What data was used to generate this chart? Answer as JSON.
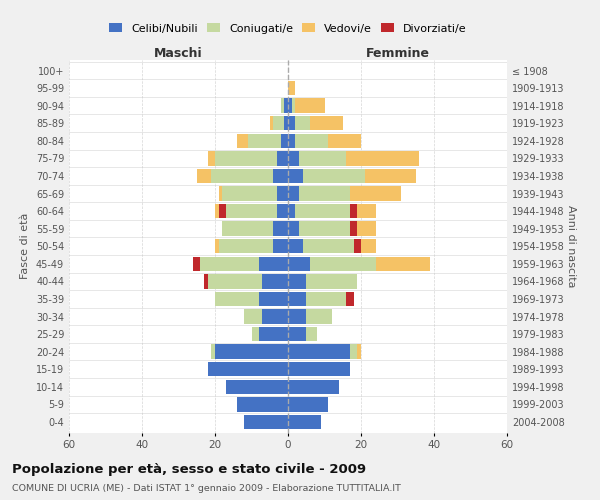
{
  "age_groups": [
    "0-4",
    "5-9",
    "10-14",
    "15-19",
    "20-24",
    "25-29",
    "30-34",
    "35-39",
    "40-44",
    "45-49",
    "50-54",
    "55-59",
    "60-64",
    "65-69",
    "70-74",
    "75-79",
    "80-84",
    "85-89",
    "90-94",
    "95-99",
    "100+"
  ],
  "birth_years": [
    "2004-2008",
    "1999-2003",
    "1994-1998",
    "1989-1993",
    "1984-1988",
    "1979-1983",
    "1974-1978",
    "1969-1973",
    "1964-1968",
    "1959-1963",
    "1954-1958",
    "1949-1953",
    "1944-1948",
    "1939-1943",
    "1934-1938",
    "1929-1933",
    "1924-1928",
    "1919-1923",
    "1914-1918",
    "1909-1913",
    "≤ 1908"
  ],
  "maschi": {
    "celibi": [
      12,
      14,
      17,
      22,
      20,
      8,
      7,
      8,
      7,
      8,
      4,
      4,
      3,
      3,
      4,
      3,
      2,
      1,
      1,
      0,
      0
    ],
    "coniugati": [
      0,
      0,
      0,
      0,
      1,
      2,
      5,
      12,
      15,
      16,
      15,
      14,
      14,
      15,
      17,
      17,
      9,
      3,
      1,
      0,
      0
    ],
    "vedovi": [
      0,
      0,
      0,
      0,
      0,
      0,
      0,
      0,
      0,
      0,
      1,
      0,
      1,
      1,
      4,
      2,
      3,
      1,
      0,
      0,
      0
    ],
    "divorziati": [
      0,
      0,
      0,
      0,
      0,
      0,
      0,
      0,
      1,
      2,
      0,
      0,
      2,
      0,
      0,
      0,
      0,
      0,
      0,
      0,
      0
    ]
  },
  "femmine": {
    "nubili": [
      9,
      11,
      14,
      17,
      17,
      5,
      5,
      5,
      5,
      6,
      4,
      3,
      2,
      3,
      4,
      3,
      2,
      2,
      1,
      0,
      0
    ],
    "coniugate": [
      0,
      0,
      0,
      0,
      2,
      3,
      7,
      11,
      14,
      18,
      14,
      14,
      15,
      14,
      17,
      13,
      9,
      4,
      1,
      0,
      0
    ],
    "vedove": [
      0,
      0,
      0,
      0,
      1,
      0,
      0,
      0,
      0,
      15,
      4,
      5,
      5,
      14,
      14,
      20,
      9,
      9,
      8,
      2,
      0
    ],
    "divorziate": [
      0,
      0,
      0,
      0,
      0,
      0,
      0,
      2,
      0,
      0,
      2,
      2,
      2,
      0,
      0,
      0,
      0,
      0,
      0,
      0,
      0
    ]
  },
  "colors": {
    "celibi_nubili": "#4472c4",
    "coniugati": "#c5d9a0",
    "vedovi": "#f5c265",
    "divorziati": "#c0282c"
  },
  "title": "Popolazione per età, sesso e stato civile - 2009",
  "subtitle": "COMUNE DI UCRIA (ME) - Dati ISTAT 1° gennaio 2009 - Elaborazione TUTTITALIA.IT",
  "xlabel_left": "Maschi",
  "xlabel_right": "Femmine",
  "ylabel_left": "Fasce di età",
  "ylabel_right": "Anni di nascita",
  "xlim": 60,
  "background_color": "#f0f0f0",
  "bar_background": "#ffffff",
  "legend_labels": [
    "Celibi/Nubili",
    "Coniugati/e",
    "Vedovi/e",
    "Divorziati/e"
  ]
}
